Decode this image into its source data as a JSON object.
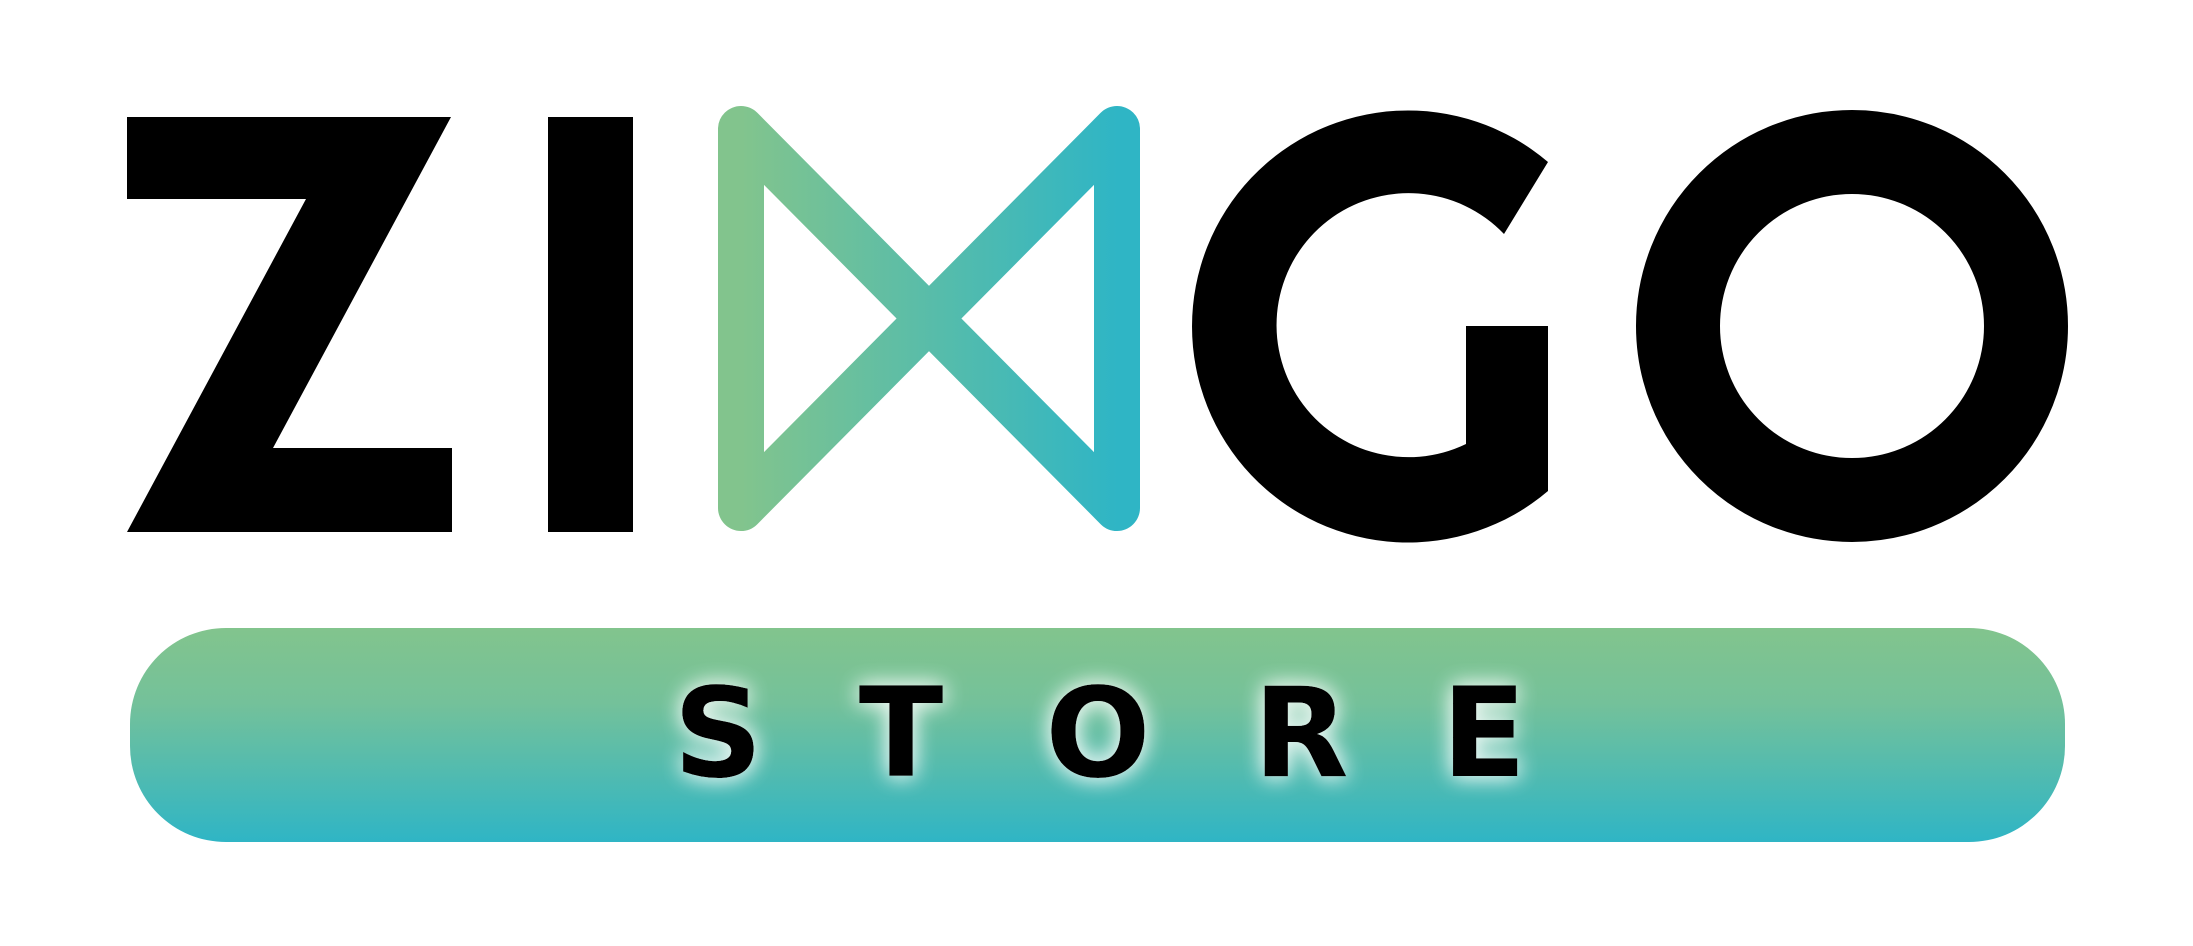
{
  "logo": {
    "brand_name": "ZINGO",
    "brand_letters": [
      "Z",
      "I",
      "N",
      "G",
      "O"
    ],
    "tagline_letters": [
      "S",
      "T",
      "O",
      "R",
      "E"
    ],
    "colors": {
      "wordmark": "#000000",
      "gradient_green": "#82c48d",
      "gradient_teal": "#2fb5c5",
      "tagline_text": "#000000",
      "background": "#ffffff"
    }
  }
}
